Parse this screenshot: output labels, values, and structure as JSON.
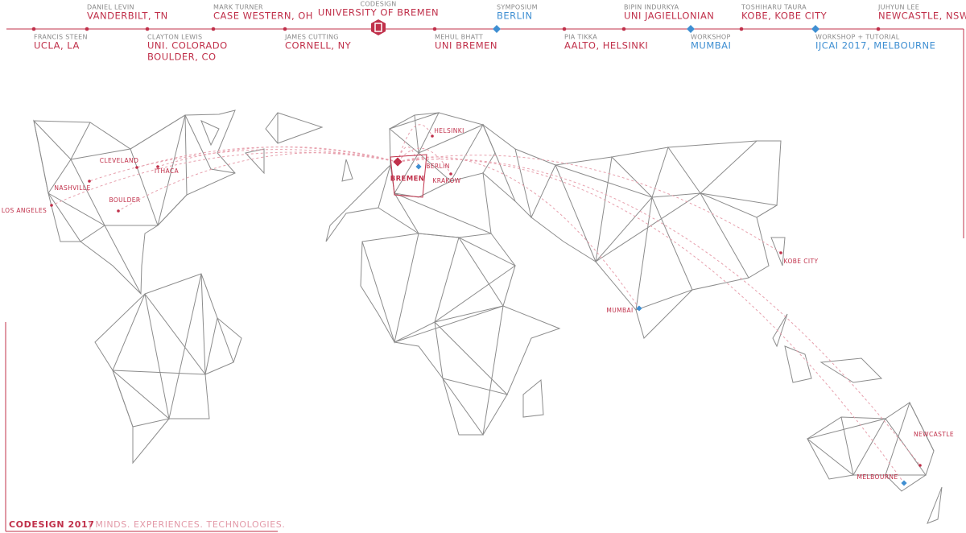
{
  "timeline": [
    {
      "label": "FRANCIS STEEN",
      "place": "UCLA, LA"
    },
    {
      "label": "DANIEL LEVIN",
      "place": "VANDERBILT, TN"
    },
    {
      "label": "CLAYTON LEWIS",
      "place": [
        "UNI. COLORADO",
        "BOULDER, CO"
      ]
    },
    {
      "label": "MARK TURNER",
      "place": "CASE WESTERN, OH"
    },
    {
      "label": "JAMES CUTTING",
      "place": "CORNELL, NY"
    },
    {
      "label": "CODESIGN",
      "place": "UNIVERSITY OF BREMEN"
    },
    {
      "label": "MEHUL BHATT",
      "place": "UNI BREMEN"
    },
    {
      "label": "SYMPOSIUM",
      "place": "BERLIN"
    },
    {
      "label": "PIA TIKKA",
      "place": "AALTO, HELSINKI"
    },
    {
      "label": "BIPIN INDURKYA",
      "place": "UNI JAGIELLONIAN"
    },
    {
      "label": "WORKSHOP",
      "place": "MUMBAI"
    },
    {
      "label": "TOSHIHARU TAURA",
      "place": "KOBE, KOBE CITY"
    },
    {
      "label": "WORKSHOP + TUTORIAL",
      "place": "IJCAI 2017, MELBOURNE"
    },
    {
      "label": "JUHYUN LEE",
      "place": "NEWCASTLE, NSW"
    }
  ],
  "map": {
    "cities": [
      "LOS ANGELES",
      "NASHVILLE",
      "BOULDER",
      "CLEVELAND",
      "ITHACA",
      "HELSINKI",
      "BERLIN",
      "BREMEN",
      "KRAKOW",
      "KOBE CITY",
      "MUMBAI",
      "NEWCASTLE",
      "MELBOURNE"
    ]
  },
  "footer": {
    "brand": "CODESIGN 2017",
    "tagline": "| MINDS. EXPERIENCES. TECHNOLOGIES."
  }
}
